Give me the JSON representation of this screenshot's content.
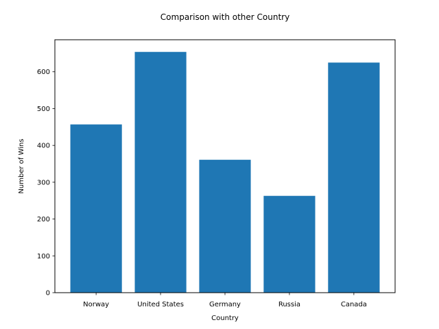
{
  "chart_data": {
    "type": "bar",
    "title": "Comparison with other Country",
    "xlabel": "Country",
    "ylabel": "Number of Wins",
    "categories": [
      "Norway",
      "United States",
      "Germany",
      "Russia",
      "Canada"
    ],
    "values": [
      457,
      654,
      361,
      263,
      625
    ],
    "ylim": [
      0,
      687
    ],
    "yticks": [
      0,
      100,
      200,
      300,
      400,
      500,
      600
    ],
    "grid": false,
    "bar_color": "#1f77b4"
  }
}
